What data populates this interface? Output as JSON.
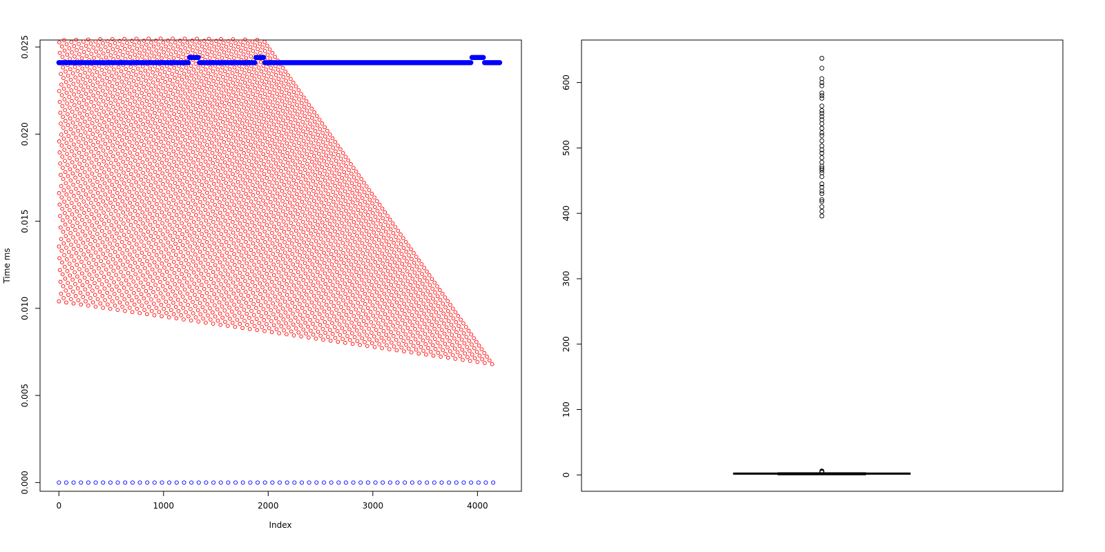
{
  "chart_data": [
    {
      "type": "scatter",
      "title": "",
      "xlabel": "Index",
      "ylabel": "Time ms",
      "xlim": [
        -180,
        4420
      ],
      "ylim": [
        -0.0005,
        0.0254
      ],
      "x_ticks": [
        "0",
        "1000",
        "2000",
        "3000",
        "4000"
      ],
      "y_ticks": [
        "0.000",
        "0.005",
        "0.010",
        "0.015",
        "0.020",
        "0.025"
      ],
      "grid": false,
      "legend": "none",
      "colors": {
        "red_series": "#ff0000",
        "blue_open": "#0000ff",
        "blue_filled": "#0000ff"
      },
      "series": [
        {
          "marker": "open-circle",
          "color": "#ff0000",
          "pattern": "sawtooth fan: 60 lines, each descending from ~0.0255 at x=0..4140; bottom boundary from ~0.0104 at x=0 to ~0.0068 at x=4140",
          "bottom_start": 0.0104,
          "bottom_end": 0.0068,
          "top": 0.0256,
          "x_max": 4140,
          "line_count": 60
        },
        {
          "marker": "filled-circle",
          "color": "#0000ff",
          "pattern": "dense horizontal band near 0.0241 from x=0 to x=4220, with short plateaus near 0.0244",
          "level": 0.0241,
          "x": [
            0,
            4220
          ],
          "bumps": [
            {
              "x": [
                1240,
                1340
              ],
              "y": 0.0244
            },
            {
              "x": [
                1880,
                1960
              ],
              "y": 0.0244
            },
            {
              "x": [
                3940,
                4060
              ],
              "y": 0.0244
            }
          ]
        },
        {
          "marker": "open-circle",
          "color": "#0000ff",
          "pattern": "points at y=0 every ~70 from x=0 to x=4150",
          "y": 0,
          "x_start": 0,
          "x_end": 4150,
          "count": 60
        }
      ]
    },
    {
      "type": "boxplot",
      "title": "",
      "xlabel": "",
      "ylabel": "",
      "ylim": [
        -25,
        665
      ],
      "y_ticks": [
        "0",
        "100",
        "200",
        "300",
        "400",
        "500",
        "600"
      ],
      "box": {
        "min": 0,
        "q1": 1,
        "median": 2,
        "q3": 3,
        "max": 3.5
      },
      "outliers_low_cluster": [
        4,
        4.5,
        5,
        5.5,
        6
      ],
      "outliers": [
        396,
        403,
        410,
        418,
        421,
        430,
        434,
        440,
        445,
        456,
        462,
        466,
        469,
        472,
        478,
        485,
        492,
        497,
        503,
        511,
        519,
        523,
        530,
        537,
        543,
        548,
        553,
        557,
        564,
        576,
        580,
        584,
        595,
        600,
        606,
        622,
        637
      ]
    }
  ]
}
